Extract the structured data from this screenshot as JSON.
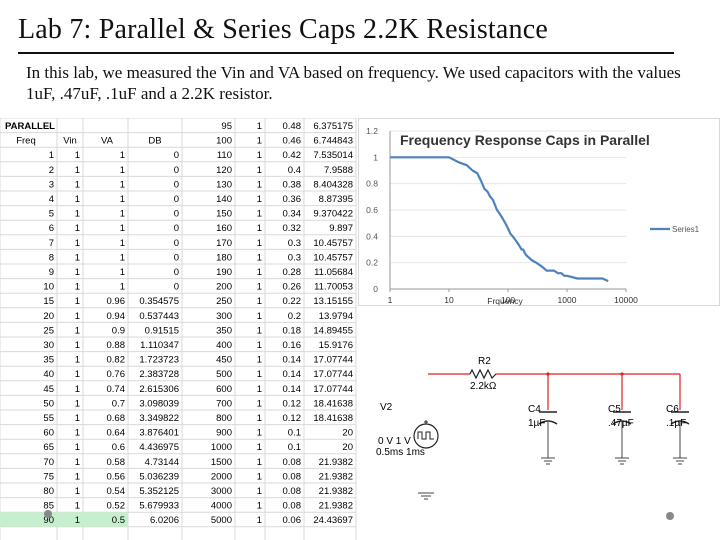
{
  "slide": {
    "title": "Lab 7: Parallel & Series Caps 2.2K Resistance",
    "body": "In this lab, we measured the Vin and VA based on frequency. We used capacitors with the values 1uF, .47uF, .1uF and a 2.2K resistor."
  },
  "spreadsheet": {
    "label": "PARALLEL",
    "headers": [
      "Freq",
      "Vin",
      "VA",
      "DB"
    ],
    "left_rows": [
      [
        "1",
        "1",
        "1",
        "0"
      ],
      [
        "2",
        "1",
        "1",
        "0"
      ],
      [
        "3",
        "1",
        "1",
        "0"
      ],
      [
        "4",
        "1",
        "1",
        "0"
      ],
      [
        "5",
        "1",
        "1",
        "0"
      ],
      [
        "6",
        "1",
        "1",
        "0"
      ],
      [
        "7",
        "1",
        "1",
        "0"
      ],
      [
        "8",
        "1",
        "1",
        "0"
      ],
      [
        "9",
        "1",
        "1",
        "0"
      ],
      [
        "10",
        "1",
        "1",
        "0"
      ],
      [
        "15",
        "1",
        "0.96",
        "0.354575"
      ],
      [
        "20",
        "1",
        "0.94",
        "0.537443"
      ],
      [
        "25",
        "1",
        "0.9",
        "0.91515"
      ],
      [
        "30",
        "1",
        "0.88",
        "1.110347"
      ],
      [
        "35",
        "1",
        "0.82",
        "1.723723"
      ],
      [
        "40",
        "1",
        "0.76",
        "2.383728"
      ],
      [
        "45",
        "1",
        "0.74",
        "2.615306"
      ],
      [
        "50",
        "1",
        "0.7",
        "3.098039"
      ],
      [
        "55",
        "1",
        "0.68",
        "3.349822"
      ],
      [
        "60",
        "1",
        "0.64",
        "3.876401"
      ],
      [
        "65",
        "1",
        "0.6",
        "4.436975"
      ],
      [
        "70",
        "1",
        "0.58",
        "4.73144"
      ],
      [
        "75",
        "1",
        "0.56",
        "5.036239"
      ],
      [
        "80",
        "1",
        "0.54",
        "5.352125"
      ],
      [
        "85",
        "1",
        "0.52",
        "5.679933"
      ],
      [
        "90",
        "1",
        "0.5",
        "6.0206"
      ]
    ],
    "right_rows": [
      [
        "95",
        "1",
        "0.48",
        "6.375175"
      ],
      [
        "100",
        "1",
        "0.46",
        "6.744843"
      ],
      [
        "110",
        "1",
        "0.42",
        "7.535014"
      ],
      [
        "120",
        "1",
        "0.4",
        "7.9588"
      ],
      [
        "130",
        "1",
        "0.38",
        "8.404328"
      ],
      [
        "140",
        "1",
        "0.36",
        "8.87395"
      ],
      [
        "150",
        "1",
        "0.34",
        "9.370422"
      ],
      [
        "160",
        "1",
        "0.32",
        "9.897"
      ],
      [
        "170",
        "1",
        "0.3",
        "10.45757"
      ],
      [
        "180",
        "1",
        "0.3",
        "10.45757"
      ],
      [
        "190",
        "1",
        "0.28",
        "11.05684"
      ],
      [
        "200",
        "1",
        "0.26",
        "11.70053"
      ],
      [
        "250",
        "1",
        "0.22",
        "13.15155"
      ],
      [
        "300",
        "1",
        "0.2",
        "13.9794"
      ],
      [
        "350",
        "1",
        "0.18",
        "14.89455"
      ],
      [
        "400",
        "1",
        "0.16",
        "15.9176"
      ],
      [
        "450",
        "1",
        "0.14",
        "17.07744"
      ],
      [
        "500",
        "1",
        "0.14",
        "17.07744"
      ],
      [
        "600",
        "1",
        "0.14",
        "17.07744"
      ],
      [
        "700",
        "1",
        "0.12",
        "18.41638"
      ],
      [
        "800",
        "1",
        "0.12",
        "18.41638"
      ],
      [
        "900",
        "1",
        "0.1",
        "20"
      ],
      [
        "1000",
        "1",
        "0.1",
        "20"
      ],
      [
        "1500",
        "1",
        "0.08",
        "21.9382"
      ],
      [
        "2000",
        "1",
        "0.08",
        "21.9382"
      ],
      [
        "3000",
        "1",
        "0.08",
        "21.9382"
      ],
      [
        "4000",
        "1",
        "0.08",
        "21.9382"
      ],
      [
        "5000",
        "1",
        "0.06",
        "24.43697"
      ]
    ]
  },
  "chart_data": {
    "type": "line",
    "title": "Frequency Response Caps in Parallel",
    "xlabel": "Frquency",
    "ylabel": "",
    "x_scale": "log",
    "xlim": [
      1,
      10000
    ],
    "ylim": [
      0,
      1.2
    ],
    "x_ticks": [
      "1",
      "10",
      "100",
      "1000",
      "10000"
    ],
    "y_ticks": [
      "0",
      "0.2",
      "0.4",
      "0.6",
      "0.8",
      "1",
      "1.2"
    ],
    "legend_position": "right",
    "series": [
      {
        "name": "Series1",
        "color": "#4f81bd",
        "x": [
          1,
          2,
          3,
          4,
          5,
          6,
          7,
          8,
          9,
          10,
          15,
          20,
          25,
          30,
          35,
          40,
          45,
          50,
          55,
          60,
          65,
          70,
          75,
          80,
          85,
          90,
          95,
          100,
          110,
          120,
          130,
          140,
          150,
          160,
          170,
          180,
          190,
          200,
          250,
          300,
          350,
          400,
          450,
          500,
          600,
          700,
          800,
          900,
          1000,
          1500,
          2000,
          3000,
          4000,
          5000
        ],
        "y": [
          1,
          1,
          1,
          1,
          1,
          1,
          1,
          1,
          1,
          1,
          0.96,
          0.94,
          0.9,
          0.88,
          0.82,
          0.76,
          0.74,
          0.7,
          0.68,
          0.64,
          0.6,
          0.58,
          0.56,
          0.54,
          0.52,
          0.5,
          0.48,
          0.46,
          0.42,
          0.4,
          0.38,
          0.36,
          0.34,
          0.32,
          0.3,
          0.3,
          0.28,
          0.26,
          0.22,
          0.2,
          0.18,
          0.16,
          0.14,
          0.14,
          0.14,
          0.12,
          0.12,
          0.1,
          0.1,
          0.08,
          0.08,
          0.08,
          0.08,
          0.06
        ]
      }
    ]
  },
  "circuit": {
    "resistor_name": "R2",
    "resistor_value": "2.2kΩ",
    "source_name": "V2",
    "source_line1": "0 V 1 V",
    "source_line2": "0.5ms 1ms",
    "capacitors": [
      {
        "name": "C4",
        "value": "1µF"
      },
      {
        "name": "C5",
        "value": ".47µF"
      },
      {
        "name": "C6",
        "value": ".1µF"
      }
    ]
  },
  "colors": {
    "wire_red": "#e02020",
    "series_blue": "#4f81bd",
    "grid": "#d9d9d9",
    "highlight_row": "#c6efce"
  }
}
